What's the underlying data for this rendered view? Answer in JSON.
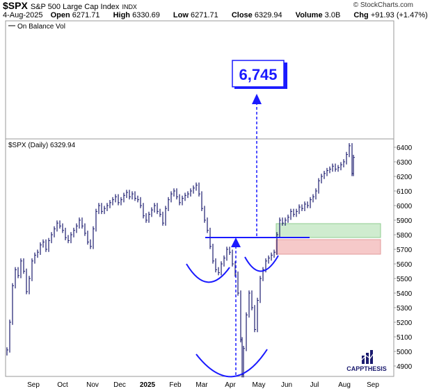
{
  "header": {
    "symbol": "$SPX",
    "name": "S&P 500 Large Cap Index",
    "exchange": "INDX",
    "source": "© StockCharts.com",
    "date": "4-Aug-2025",
    "open_label": "Open",
    "open": "6271.71",
    "high_label": "High",
    "high": "6330.69",
    "low_label": "Low",
    "low": "6271.71",
    "close_label": "Close",
    "close": "6329.94",
    "volume_label": "Volume",
    "volume": "3.0B",
    "chg_label": "Chg",
    "chg": "+91.93 (+1.47%)"
  },
  "upper_panel": {
    "legend": "On Balance Vol"
  },
  "price_panel": {
    "legend": "$SPX (Daily) 6329.94"
  },
  "annotations": {
    "target": "6,745",
    "target_color": "#1a1aff"
  },
  "brand": {
    "name": "CAPPTHESIS"
  },
  "colors": {
    "bars": "#1a1a6e",
    "annotation": "#1a1aff",
    "green_zone": "#cfeccf",
    "red_zone": "#f6c9c9"
  },
  "chart_data": {
    "type": "ohlc",
    "title": "$SPX (Daily) 6329.94",
    "x_ticks": [
      "Sep",
      "Oct",
      "Nov",
      "Dec",
      "2025",
      "Feb",
      "Mar",
      "Apr",
      "May",
      "Jun",
      "Jul",
      "Aug",
      "Sep"
    ],
    "y_ticks": [
      4900,
      5000,
      5100,
      5200,
      5300,
      5400,
      5500,
      5600,
      5700,
      5800,
      5900,
      6000,
      6100,
      6200,
      6300,
      6400
    ],
    "ylim": [
      4800,
      6450
    ],
    "grid": false,
    "series": [
      {
        "name": "$SPX",
        "values": [
          [
            0,
            5010
          ],
          [
            4,
            5200
          ],
          [
            8,
            5450
          ],
          [
            12,
            5560
          ],
          [
            16,
            5520
          ],
          [
            20,
            5620
          ],
          [
            24,
            5550
          ],
          [
            28,
            5410
          ],
          [
            32,
            5500
          ],
          [
            36,
            5620
          ],
          [
            40,
            5660
          ],
          [
            44,
            5680
          ],
          [
            48,
            5730
          ],
          [
            52,
            5750
          ],
          [
            56,
            5700
          ],
          [
            60,
            5760
          ],
          [
            64,
            5800
          ],
          [
            68,
            5840
          ],
          [
            72,
            5880
          ],
          [
            76,
            5860
          ],
          [
            80,
            5830
          ],
          [
            84,
            5780
          ],
          [
            88,
            5760
          ],
          [
            92,
            5800
          ],
          [
            96,
            5830
          ],
          [
            100,
            5860
          ],
          [
            104,
            5900
          ],
          [
            108,
            5860
          ],
          [
            112,
            5810
          ],
          [
            116,
            5750
          ],
          [
            120,
            5720
          ],
          [
            124,
            5840
          ],
          [
            128,
            5960
          ],
          [
            132,
            6000
          ],
          [
            136,
            5960
          ],
          [
            140,
            5980
          ],
          [
            144,
            6000
          ],
          [
            148,
            6020
          ],
          [
            152,
            6040
          ],
          [
            156,
            6060
          ],
          [
            160,
            6020
          ],
          [
            164,
            6040
          ],
          [
            168,
            6070
          ],
          [
            172,
            6090
          ],
          [
            176,
            6060
          ],
          [
            180,
            6080
          ],
          [
            184,
            6050
          ],
          [
            188,
            6040
          ],
          [
            192,
            6000
          ],
          [
            196,
            5930
          ],
          [
            200,
            5900
          ],
          [
            204,
            5940
          ],
          [
            208,
            5970
          ],
          [
            212,
            6000
          ],
          [
            216,
            5960
          ],
          [
            220,
            5940
          ],
          [
            224,
            5880
          ],
          [
            228,
            5980
          ],
          [
            232,
            6040
          ],
          [
            236,
            6080
          ],
          [
            240,
            6100
          ],
          [
            244,
            6060
          ],
          [
            248,
            6020
          ],
          [
            252,
            6050
          ],
          [
            256,
            6070
          ],
          [
            260,
            6080
          ],
          [
            264,
            6100
          ],
          [
            268,
            6120
          ],
          [
            272,
            6140
          ],
          [
            276,
            6080
          ],
          [
            280,
            5980
          ],
          [
            284,
            5900
          ],
          [
            288,
            5830
          ],
          [
            292,
            5720
          ],
          [
            296,
            5620
          ],
          [
            300,
            5560
          ],
          [
            304,
            5540
          ],
          [
            308,
            5600
          ],
          [
            312,
            5640
          ],
          [
            316,
            5700
          ],
          [
            320,
            5680
          ],
          [
            324,
            5600
          ],
          [
            328,
            5530
          ],
          [
            332,
            5400
          ],
          [
            336,
            5080
          ],
          [
            338,
            4840
          ],
          [
            340,
            5020
          ],
          [
            344,
            5250
          ],
          [
            348,
            5400
          ],
          [
            352,
            5300
          ],
          [
            356,
            5150
          ],
          [
            360,
            5350
          ],
          [
            364,
            5500
          ],
          [
            368,
            5560
          ],
          [
            372,
            5620
          ],
          [
            376,
            5640
          ],
          [
            380,
            5660
          ],
          [
            384,
            5680
          ],
          [
            388,
            5800
          ],
          [
            392,
            5900
          ],
          [
            396,
            5880
          ],
          [
            400,
            5900
          ],
          [
            404,
            5920
          ],
          [
            408,
            5960
          ],
          [
            412,
            5940
          ],
          [
            416,
            5960
          ],
          [
            420,
            5990
          ],
          [
            424,
            5980
          ],
          [
            428,
            6010
          ],
          [
            432,
            6000
          ],
          [
            436,
            6040
          ],
          [
            440,
            6060
          ],
          [
            444,
            6100
          ],
          [
            448,
            6170
          ],
          [
            452,
            6200
          ],
          [
            456,
            6220
          ],
          [
            460,
            6240
          ],
          [
            464,
            6250
          ],
          [
            468,
            6270
          ],
          [
            472,
            6250
          ],
          [
            476,
            6260
          ],
          [
            480,
            6280
          ],
          [
            484,
            6300
          ],
          [
            488,
            6350
          ],
          [
            492,
            6410
          ],
          [
            496,
            6220
          ],
          [
            498,
            6330
          ]
        ]
      }
    ]
  }
}
